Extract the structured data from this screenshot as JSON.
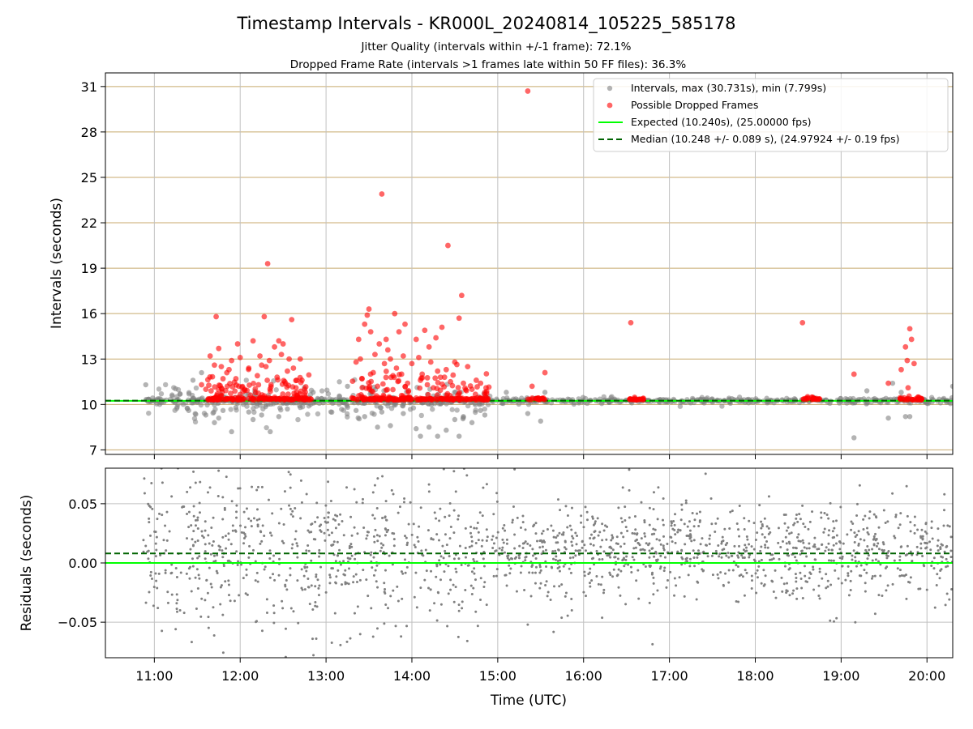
{
  "chart_data": [
    {
      "type": "scatter",
      "panel": "intervals",
      "title": "Timestamp Intervals - KR000L_20240814_105225_585178",
      "subtitle_lines": [
        "Jitter Quality (intervals within +/-1 frame): 72.1%",
        "Dropped Frame Rate (intervals >1 frames late within 50 FF files): 36.3%"
      ],
      "ylabel": "Intervals (seconds)",
      "ylim": [
        6.7,
        31.9
      ],
      "yticks": [
        7,
        10,
        13,
        16,
        19,
        22,
        25,
        28,
        31
      ],
      "xlim": [
        10.43,
        20.3
      ],
      "xtick_labels": [
        "11:00",
        "12:00",
        "13:00",
        "14:00",
        "15:00",
        "16:00",
        "17:00",
        "18:00",
        "19:00",
        "20:00"
      ],
      "xtick_values": [
        11,
        12,
        13,
        14,
        15,
        16,
        17,
        18,
        19,
        20
      ],
      "grid": true,
      "legend_position": "top-right",
      "colors": {
        "intervals": "#808080",
        "dropped": "#ff0000",
        "expected": "#00ff00",
        "median": "#006400",
        "hgrid": "#c8aa6e",
        "vgrid": "#c0c0c0"
      },
      "series": [
        {
          "name": "Intervals, max (30.731s), min (7.799s)",
          "kind": "scatter",
          "color": "#808080"
        },
        {
          "name": "Possible Dropped Frames",
          "kind": "scatter",
          "color": "#ff0000"
        },
        {
          "name": "Expected (10.240s), (25.00000 fps)",
          "kind": "hline",
          "value": 10.24,
          "color": "#00ff00"
        },
        {
          "name": "Median (10.248 +/- 0.089 s), (24.97924 +/- 0.19 fps)",
          "kind": "hline-dashed",
          "value": 10.248,
          "color": "#006400"
        }
      ],
      "dense_band": {
        "y": 10.25,
        "x_start": 10.87,
        "x_end": 20.3
      },
      "gray_outliers": [
        [
          10.9,
          11.3
        ],
        [
          11.3,
          10.7
        ],
        [
          11.4,
          9.6
        ],
        [
          11.45,
          11.6
        ],
        [
          11.55,
          12.1
        ],
        [
          11.6,
          9.3
        ],
        [
          11.7,
          8.8
        ],
        [
          11.75,
          9.1
        ],
        [
          11.8,
          9.6
        ],
        [
          11.9,
          8.2
        ],
        [
          11.95,
          9.8
        ],
        [
          12.1,
          9.5
        ],
        [
          12.15,
          9.0
        ],
        [
          12.25,
          9.3
        ],
        [
          12.35,
          8.2
        ],
        [
          12.45,
          9.2
        ],
        [
          12.55,
          9.7
        ],
        [
          12.7,
          9.8
        ],
        [
          12.85,
          10.8
        ],
        [
          13.25,
          11.2
        ],
        [
          13.35,
          9.6
        ],
        [
          13.45,
          9.2
        ],
        [
          13.6,
          8.5
        ],
        [
          13.65,
          9.5
        ],
        [
          13.75,
          8.6
        ],
        [
          13.9,
          9.4
        ],
        [
          14.05,
          8.4
        ],
        [
          14.1,
          7.9
        ],
        [
          14.2,
          8.5
        ],
        [
          14.3,
          7.9
        ],
        [
          14.4,
          8.3
        ],
        [
          14.5,
          9.0
        ],
        [
          14.55,
          7.9
        ],
        [
          14.6,
          9.2
        ],
        [
          14.7,
          8.8
        ],
        [
          14.8,
          9.6
        ],
        [
          14.85,
          9.3
        ],
        [
          15.1,
          10.8
        ],
        [
          15.35,
          9.4
        ],
        [
          15.5,
          8.9
        ],
        [
          15.55,
          10.8
        ],
        [
          19.15,
          7.8
        ],
        [
          19.3,
          10.9
        ],
        [
          19.55,
          9.1
        ],
        [
          19.6,
          11.4
        ],
        [
          19.7,
          10.8
        ],
        [
          19.75,
          9.2
        ],
        [
          19.8,
          9.2
        ],
        [
          20.3,
          11.2
        ]
      ],
      "dropped_points": [
        [
          11.55,
          11.3
        ],
        [
          11.6,
          11.0
        ],
        [
          11.65,
          13.2
        ],
        [
          11.7,
          12.6
        ],
        [
          11.72,
          15.8
        ],
        [
          11.75,
          13.7
        ],
        [
          11.78,
          12.5
        ],
        [
          11.8,
          11.7
        ],
        [
          11.85,
          11.2
        ],
        [
          11.87,
          12.3
        ],
        [
          11.9,
          12.9
        ],
        [
          11.95,
          11.7
        ],
        [
          11.97,
          14.0
        ],
        [
          12.0,
          13.1
        ],
        [
          12.05,
          11.0
        ],
        [
          12.1,
          12.4
        ],
        [
          12.15,
          14.2
        ],
        [
          12.2,
          11.9
        ],
        [
          12.23,
          13.2
        ],
        [
          12.25,
          12.6
        ],
        [
          12.28,
          15.8
        ],
        [
          12.3,
          12.5
        ],
        [
          12.32,
          19.3
        ],
        [
          12.34,
          12.9
        ],
        [
          12.36,
          11.3
        ],
        [
          12.4,
          13.8
        ],
        [
          12.43,
          11.8
        ],
        [
          12.45,
          14.2
        ],
        [
          12.48,
          13.3
        ],
        [
          12.5,
          14.0
        ],
        [
          12.52,
          11.5
        ],
        [
          12.55,
          12.2
        ],
        [
          12.57,
          13.0
        ],
        [
          12.6,
          15.6
        ],
        [
          12.62,
          12.4
        ],
        [
          12.65,
          11.1
        ],
        [
          12.7,
          13.0
        ],
        [
          12.72,
          11.6
        ],
        [
          12.75,
          11.0
        ],
        [
          13.35,
          12.8
        ],
        [
          13.38,
          14.3
        ],
        [
          13.4,
          13.0
        ],
        [
          13.42,
          11.7
        ],
        [
          13.45,
          15.3
        ],
        [
          13.48,
          15.9
        ],
        [
          13.5,
          16.3
        ],
        [
          13.52,
          14.8
        ],
        [
          13.55,
          12.1
        ],
        [
          13.57,
          13.3
        ],
        [
          13.6,
          11.2
        ],
        [
          13.62,
          14.0
        ],
        [
          13.65,
          23.9
        ],
        [
          13.68,
          12.7
        ],
        [
          13.7,
          14.3
        ],
        [
          13.72,
          13.6
        ],
        [
          13.75,
          13.0
        ],
        [
          13.78,
          11.9
        ],
        [
          13.8,
          16.0
        ],
        [
          13.82,
          12.4
        ],
        [
          13.85,
          14.8
        ],
        [
          13.88,
          12.0
        ],
        [
          13.9,
          13.2
        ],
        [
          13.92,
          15.3
        ],
        [
          13.95,
          11.4
        ],
        [
          14.0,
          12.7
        ],
        [
          14.05,
          14.3
        ],
        [
          14.08,
          13.1
        ],
        [
          14.1,
          11.6
        ],
        [
          14.12,
          12.0
        ],
        [
          14.15,
          14.9
        ],
        [
          14.18,
          11.3
        ],
        [
          14.2,
          13.8
        ],
        [
          14.22,
          12.8
        ],
        [
          14.25,
          11.1
        ],
        [
          14.28,
          14.4
        ],
        [
          14.3,
          12.2
        ],
        [
          14.35,
          15.1
        ],
        [
          14.38,
          11.8
        ],
        [
          14.4,
          12.3
        ],
        [
          14.42,
          20.5
        ],
        [
          14.45,
          11.5
        ],
        [
          14.5,
          12.8
        ],
        [
          14.55,
          15.7
        ],
        [
          14.58,
          17.2
        ],
        [
          14.6,
          11.4
        ],
        [
          14.65,
          12.5
        ],
        [
          14.7,
          11.0
        ],
        [
          14.75,
          11.6
        ],
        [
          14.8,
          11.4
        ],
        [
          14.85,
          10.8
        ],
        [
          15.35,
          30.7
        ],
        [
          15.4,
          11.2
        ],
        [
          15.55,
          12.1
        ],
        [
          16.55,
          15.4
        ],
        [
          18.55,
          15.4
        ],
        [
          19.15,
          12.0
        ],
        [
          19.55,
          11.4
        ],
        [
          19.7,
          12.3
        ],
        [
          19.75,
          13.8
        ],
        [
          19.77,
          12.9
        ],
        [
          19.8,
          15.0
        ],
        [
          19.82,
          14.3
        ],
        [
          19.78,
          11.1
        ],
        [
          19.85,
          12.7
        ]
      ],
      "dropped_clusters": [
        [
          11.6,
          12.85
        ],
        [
          13.3,
          14.95
        ],
        [
          15.35,
          15.55
        ],
        [
          16.5,
          16.7
        ],
        [
          18.55,
          18.75
        ],
        [
          19.68,
          19.95
        ]
      ]
    },
    {
      "type": "scatter",
      "panel": "residuals",
      "xlabel": "Time (UTC)",
      "ylabel": "Residuals (seconds)",
      "ylim": [
        -0.08,
        0.08
      ],
      "yticks": [
        0.05,
        0.0,
        -0.05
      ],
      "ytick_labels": [
        "0.05",
        "0.00",
        "−0.05"
      ],
      "xlim": [
        10.43,
        20.3
      ],
      "xtick_labels": [
        "11:00",
        "12:00",
        "13:00",
        "14:00",
        "15:00",
        "16:00",
        "17:00",
        "18:00",
        "19:00",
        "20:00"
      ],
      "xtick_values": [
        11,
        12,
        13,
        14,
        15,
        16,
        17,
        18,
        19,
        20
      ],
      "grid": true,
      "lines": [
        {
          "kind": "hline",
          "value": 0.0,
          "color": "#00ff00"
        },
        {
          "kind": "hline-dashed",
          "value": 0.008,
          "color": "#006400"
        }
      ],
      "points_x_range": [
        10.87,
        20.3
      ],
      "points_center": 0.01,
      "points_spread": 0.022,
      "point_color": "#808080"
    }
  ]
}
